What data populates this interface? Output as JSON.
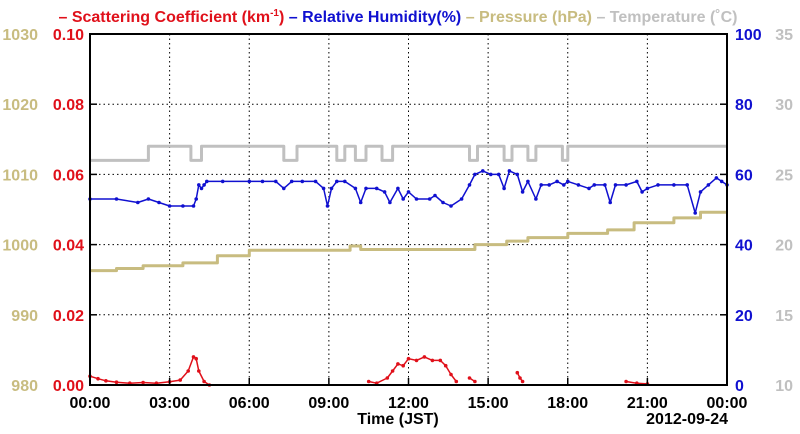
{
  "chart_data": {
    "type": "line",
    "legend": {
      "placement": "top",
      "items": [
        {
          "prefix": "– ",
          "text": "Scattering Coefficient (km",
          "sup": "-1",
          "suffix": ")",
          "color": "#e0101a"
        },
        {
          "prefix": " – ",
          "text": "Relative Humidity(%)",
          "color": "#1010d0"
        },
        {
          "prefix": " – ",
          "text": "Pressure (hPa)",
          "color": "#c8bc80"
        },
        {
          "prefix": " – ",
          "text": "Temperature (",
          "unit": "˚",
          "suffix": "C)",
          "color": "#c0c0c0"
        }
      ]
    },
    "xlabel": "Time (JST)",
    "date_label": "2012-09-24",
    "xlim": [
      0,
      24
    ],
    "x_ticks": [
      0,
      3,
      6,
      9,
      12,
      15,
      18,
      21,
      24
    ],
    "x_tick_labels": [
      "00:00",
      "03:00",
      "06:00",
      "09:00",
      "12:00",
      "15:00",
      "18:00",
      "21:00",
      "00:00"
    ],
    "grid": true,
    "axes": {
      "pressure": {
        "range": [
          980,
          1030
        ],
        "ticks": [
          "980",
          "990",
          "1000",
          "1010",
          "1020",
          "1030"
        ],
        "color": "#c8bc80"
      },
      "scattering": {
        "range": [
          0,
          0.1
        ],
        "ticks": [
          "0.00",
          "0.02",
          "0.04",
          "0.06",
          "0.08",
          "0.10"
        ],
        "color": "#e0101a"
      },
      "humidity": {
        "range": [
          0,
          100
        ],
        "ticks": [
          "0",
          "20",
          "40",
          "60",
          "80",
          "100"
        ],
        "color": "#1010d0"
      },
      "temperature": {
        "range": [
          10,
          35
        ],
        "ticks": [
          "10",
          "15",
          "20",
          "25",
          "30",
          "35"
        ],
        "color": "#c0c0c0"
      }
    },
    "series": [
      {
        "name": "Temperature",
        "axis": "temperature",
        "color": "#c0c0c0",
        "step": true,
        "points": [
          [
            0,
            26
          ],
          [
            2.2,
            26
          ],
          [
            2.2,
            27
          ],
          [
            3.8,
            27
          ],
          [
            3.8,
            26
          ],
          [
            4.2,
            26
          ],
          [
            4.2,
            27
          ],
          [
            7.3,
            27
          ],
          [
            7.3,
            26
          ],
          [
            7.8,
            26
          ],
          [
            7.8,
            27
          ],
          [
            9.3,
            27
          ],
          [
            9.3,
            26
          ],
          [
            9.6,
            26
          ],
          [
            9.6,
            27
          ],
          [
            10.0,
            27
          ],
          [
            10.0,
            26
          ],
          [
            10.4,
            26
          ],
          [
            10.4,
            27
          ],
          [
            11.0,
            27
          ],
          [
            11.0,
            26
          ],
          [
            11.4,
            26
          ],
          [
            11.4,
            27
          ],
          [
            14.3,
            27
          ],
          [
            14.3,
            26
          ],
          [
            14.6,
            26
          ],
          [
            14.6,
            27
          ],
          [
            15.6,
            27
          ],
          [
            15.6,
            26
          ],
          [
            15.9,
            26
          ],
          [
            15.9,
            27
          ],
          [
            16.5,
            27
          ],
          [
            16.5,
            26
          ],
          [
            16.8,
            26
          ],
          [
            16.8,
            27
          ],
          [
            17.8,
            27
          ],
          [
            17.8,
            26
          ],
          [
            18.0,
            26
          ],
          [
            18.0,
            27
          ],
          [
            24,
            27
          ]
        ]
      },
      {
        "name": "Pressure",
        "axis": "pressure",
        "color": "#c8bc80",
        "step": true,
        "points": [
          [
            0,
            996.3
          ],
          [
            1.0,
            996.6
          ],
          [
            2.0,
            997.0
          ],
          [
            3.5,
            997.4
          ],
          [
            4.8,
            998.4
          ],
          [
            6.0,
            999.2
          ],
          [
            9.8,
            999.8
          ],
          [
            10.2,
            999.3
          ],
          [
            12.0,
            999.3
          ],
          [
            14.5,
            1000.0
          ],
          [
            15.7,
            1000.5
          ],
          [
            16.5,
            1001.0
          ],
          [
            18.0,
            1001.6
          ],
          [
            19.5,
            1002.1
          ],
          [
            20.5,
            1003.1
          ],
          [
            22.0,
            1003.8
          ],
          [
            23.0,
            1004.6
          ],
          [
            24.0,
            1004.6
          ]
        ]
      },
      {
        "name": "Relative Humidity",
        "axis": "humidity",
        "color": "#1010d0",
        "markers": true,
        "points": [
          [
            0,
            53
          ],
          [
            1,
            53
          ],
          [
            1.8,
            52
          ],
          [
            2.2,
            53
          ],
          [
            2.6,
            52
          ],
          [
            3.0,
            51
          ],
          [
            3.5,
            51
          ],
          [
            3.9,
            51
          ],
          [
            4.0,
            53
          ],
          [
            4.1,
            57
          ],
          [
            4.2,
            56
          ],
          [
            4.3,
            57
          ],
          [
            4.4,
            58
          ],
          [
            5,
            58
          ],
          [
            6,
            58
          ],
          [
            6.5,
            58
          ],
          [
            7.0,
            58
          ],
          [
            7.3,
            56
          ],
          [
            7.6,
            58
          ],
          [
            8.0,
            58
          ],
          [
            8.5,
            58
          ],
          [
            8.8,
            56
          ],
          [
            8.95,
            51
          ],
          [
            9.1,
            56
          ],
          [
            9.3,
            58
          ],
          [
            9.6,
            58
          ],
          [
            10.0,
            56
          ],
          [
            10.2,
            52
          ],
          [
            10.4,
            56
          ],
          [
            10.8,
            56
          ],
          [
            11.1,
            55
          ],
          [
            11.3,
            52
          ],
          [
            11.6,
            56
          ],
          [
            11.8,
            53
          ],
          [
            12.0,
            55
          ],
          [
            12.3,
            53
          ],
          [
            12.8,
            53
          ],
          [
            13.0,
            54
          ],
          [
            13.3,
            52
          ],
          [
            13.6,
            51
          ],
          [
            14.0,
            53
          ],
          [
            14.3,
            57
          ],
          [
            14.5,
            60
          ],
          [
            14.8,
            61
          ],
          [
            15.1,
            60
          ],
          [
            15.4,
            60
          ],
          [
            15.6,
            56
          ],
          [
            15.8,
            61
          ],
          [
            16.1,
            60
          ],
          [
            16.3,
            55
          ],
          [
            16.5,
            58
          ],
          [
            16.8,
            53
          ],
          [
            17.0,
            57
          ],
          [
            17.3,
            57
          ],
          [
            17.6,
            58
          ],
          [
            17.85,
            57
          ],
          [
            18.0,
            58
          ],
          [
            18.4,
            57
          ],
          [
            18.8,
            56
          ],
          [
            19.0,
            57
          ],
          [
            19.4,
            57
          ],
          [
            19.6,
            52
          ],
          [
            19.8,
            57
          ],
          [
            20.2,
            57
          ],
          [
            20.6,
            58
          ],
          [
            20.8,
            55
          ],
          [
            21.0,
            56
          ],
          [
            21.4,
            57
          ],
          [
            22.0,
            57
          ],
          [
            22.5,
            57
          ],
          [
            22.8,
            49
          ],
          [
            23.0,
            55
          ],
          [
            23.3,
            57
          ],
          [
            23.6,
            59
          ],
          [
            23.8,
            58
          ],
          [
            24,
            57
          ]
        ]
      },
      {
        "name": "Scattering Coefficient",
        "axis": "scattering",
        "color": "#e0101a",
        "markers": true,
        "segments": [
          [
            [
              0,
              0.0025
            ],
            [
              0.3,
              0.0018
            ],
            [
              0.6,
              0.0012
            ],
            [
              1.0,
              0.0008
            ],
            [
              1.5,
              0.0005
            ],
            [
              2.0,
              0.0007
            ],
            [
              2.5,
              0.0005
            ],
            [
              3.0,
              0.0009
            ],
            [
              3.4,
              0.0014
            ],
            [
              3.7,
              0.004
            ],
            [
              3.9,
              0.008
            ],
            [
              4.0,
              0.0075
            ],
            [
              4.1,
              0.004
            ],
            [
              4.3,
              0.001
            ],
            [
              4.5,
              0
            ]
          ],
          [
            [
              10.5,
              0.001
            ],
            [
              10.8,
              0.0005
            ],
            [
              11.2,
              0.002
            ],
            [
              11.4,
              0.004
            ],
            [
              11.6,
              0.006
            ],
            [
              11.8,
              0.0055
            ],
            [
              12.0,
              0.0075
            ],
            [
              12.3,
              0.007
            ],
            [
              12.6,
              0.008
            ],
            [
              12.9,
              0.007
            ],
            [
              13.2,
              0.007
            ],
            [
              13.4,
              0.0055
            ],
            [
              13.6,
              0.003
            ],
            [
              13.8,
              0.001
            ]
          ],
          [
            [
              14.3,
              0.002
            ],
            [
              14.5,
              0.001
            ]
          ],
          [
            [
              16.1,
              0.0035
            ],
            [
              16.2,
              0.002
            ],
            [
              16.3,
              0.001
            ]
          ],
          [
            [
              20.2,
              0.001
            ],
            [
              20.6,
              0.0005
            ],
            [
              21.0,
              0.0003
            ]
          ]
        ]
      }
    ]
  }
}
